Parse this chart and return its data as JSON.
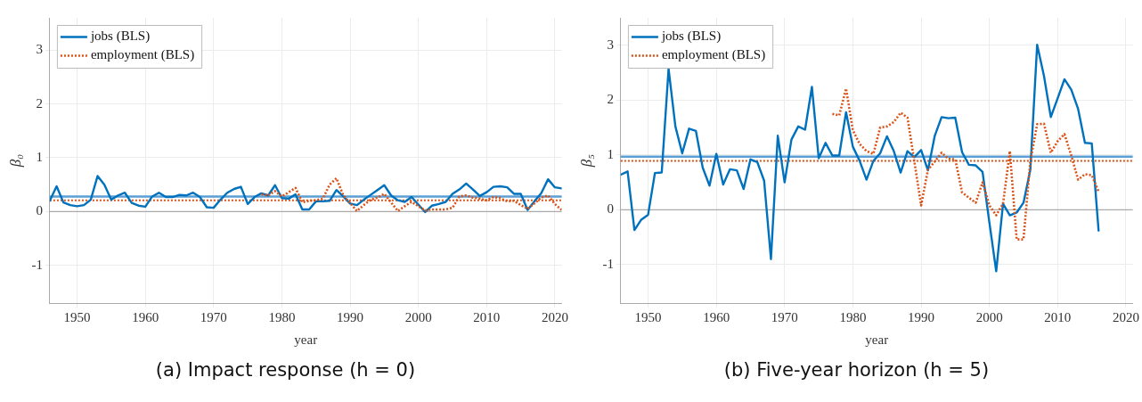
{
  "chart_data": [
    {
      "type": "line",
      "title": "(a) Impact response (h = 0)",
      "xlabel": "year",
      "ylabel": "β₀",
      "xlim": [
        1946,
        2021
      ],
      "xticks": [
        1950,
        1960,
        1970,
        1980,
        1990,
        2000,
        2010,
        2020
      ],
      "ylim": [
        -1.7,
        3.6
      ],
      "yticks": [
        -1,
        0,
        1,
        2,
        3
      ],
      "grid": true,
      "legend": "top left",
      "ref_lines": [
        {
          "axis": "y",
          "value": 0,
          "color": "#aaaaaa",
          "line_style": "solid"
        },
        {
          "axis": "y",
          "value": 0.28,
          "color": "#5b9fd6",
          "line_style": "solid"
        },
        {
          "axis": "y",
          "value": 0.21,
          "color": "#d95319",
          "line_style": "dotted"
        }
      ],
      "series": [
        {
          "name": "jobs (BLS)",
          "color": "#0072bd",
          "line_style": "solid",
          "x": [
            1946,
            1947,
            1948,
            1949,
            1950,
            1951,
            1952,
            1953,
            1954,
            1955,
            1956,
            1957,
            1958,
            1959,
            1960,
            1961,
            1962,
            1963,
            1964,
            1965,
            1966,
            1967,
            1968,
            1969,
            1970,
            1971,
            1972,
            1973,
            1974,
            1975,
            1976,
            1977,
            1978,
            1979,
            1980,
            1981,
            1982,
            1983,
            1984,
            1985,
            1986,
            1987,
            1988,
            1989,
            1990,
            1991,
            1992,
            1993,
            1994,
            1995,
            1996,
            1997,
            1998,
            1999,
            2000,
            2001,
            2002,
            2003,
            2004,
            2005,
            2006,
            2007,
            2008,
            2009,
            2010,
            2011,
            2012,
            2013,
            2014,
            2015,
            2016,
            2017,
            2018,
            2019,
            2020,
            2021
          ],
          "values": [
            0.2,
            0.47,
            0.17,
            0.12,
            0.1,
            0.12,
            0.22,
            0.66,
            0.5,
            0.22,
            0.3,
            0.35,
            0.16,
            0.11,
            0.09,
            0.28,
            0.35,
            0.27,
            0.27,
            0.31,
            0.3,
            0.35,
            0.27,
            0.08,
            0.07,
            0.22,
            0.35,
            0.42,
            0.46,
            0.14,
            0.27,
            0.34,
            0.3,
            0.49,
            0.25,
            0.24,
            0.32,
            0.04,
            0.04,
            0.19,
            0.19,
            0.2,
            0.4,
            0.28,
            0.15,
            0.12,
            0.22,
            0.31,
            0.4,
            0.49,
            0.3,
            0.21,
            0.18,
            0.27,
            0.13,
            -0.01,
            0.11,
            0.14,
            0.18,
            0.33,
            0.41,
            0.52,
            0.41,
            0.29,
            0.36,
            0.46,
            0.47,
            0.45,
            0.33,
            0.33,
            0.03,
            0.19,
            0.34,
            0.6,
            0.45,
            0.43
          ]
        },
        {
          "name": "employment (BLS)",
          "color": "#d95319",
          "line_style": "dotted",
          "x": [
            1977,
            1978,
            1979,
            1980,
            1981,
            1982,
            1983,
            1984,
            1985,
            1986,
            1987,
            1988,
            1989,
            1990,
            1991,
            1992,
            1993,
            1994,
            1995,
            1996,
            1997,
            1998,
            1999,
            2000,
            2001,
            2002,
            2003,
            2004,
            2005,
            2006,
            2007,
            2008,
            2009,
            2010,
            2011,
            2012,
            2013,
            2014,
            2015,
            2016,
            2017,
            2018,
            2019,
            2020,
            2021
          ],
          "values": [
            0.32,
            0.3,
            0.38,
            0.28,
            0.36,
            0.44,
            0.17,
            0.2,
            0.21,
            0.24,
            0.5,
            0.62,
            0.3,
            0.16,
            0.01,
            0.12,
            0.22,
            0.26,
            0.33,
            0.17,
            0.01,
            0.1,
            0.18,
            0.1,
            0.02,
            0.04,
            0.04,
            0.04,
            0.07,
            0.28,
            0.3,
            0.26,
            0.24,
            0.21,
            0.27,
            0.25,
            0.19,
            0.2,
            0.12,
            0.05,
            0.15,
            0.26,
            0.3,
            0.14,
            0.03
          ]
        }
      ]
    },
    {
      "type": "line",
      "title": "(b) Five-year horizon (h = 5)",
      "xlabel": "year",
      "ylabel": "β₅",
      "xlim": [
        1946,
        2021
      ],
      "xticks": [
        1950,
        1960,
        1970,
        1980,
        1990,
        2000,
        2010,
        2020
      ],
      "ylim": [
        -1.7,
        3.5
      ],
      "yticks": [
        -1,
        0,
        1,
        2,
        3
      ],
      "grid": true,
      "legend": "top left",
      "ref_lines": [
        {
          "axis": "y",
          "value": 0,
          "color": "#aaaaaa",
          "line_style": "solid"
        },
        {
          "axis": "y",
          "value": 0.97,
          "color": "#5b9fd6",
          "line_style": "solid"
        },
        {
          "axis": "y",
          "value": 0.89,
          "color": "#d95319",
          "line_style": "dotted"
        }
      ],
      "series": [
        {
          "name": "jobs (BLS)",
          "color": "#0072bd",
          "line_style": "solid",
          "x": [
            1946,
            1947,
            1948,
            1949,
            1950,
            1951,
            1952,
            1953,
            1954,
            1955,
            1956,
            1957,
            1958,
            1959,
            1960,
            1961,
            1962,
            1963,
            1964,
            1965,
            1966,
            1967,
            1968,
            1969,
            1970,
            1971,
            1972,
            1973,
            1974,
            1975,
            1976,
            1977,
            1978,
            1979,
            1980,
            1981,
            1982,
            1983,
            1984,
            1985,
            1986,
            1987,
            1988,
            1989,
            1990,
            1991,
            1992,
            1993,
            1994,
            1995,
            1996,
            1997,
            1998,
            1999,
            2000,
            2001,
            2002,
            2003,
            2004,
            2005,
            2006,
            2007,
            2008,
            2009,
            2010,
            2011,
            2012,
            2013,
            2014,
            2015,
            2016
          ],
          "values": [
            0.64,
            0.7,
            -0.37,
            -0.18,
            -0.09,
            0.67,
            0.68,
            2.57,
            1.52,
            1.03,
            1.48,
            1.44,
            0.77,
            0.44,
            1.02,
            0.46,
            0.74,
            0.72,
            0.38,
            0.92,
            0.87,
            0.53,
            -0.9,
            1.35,
            0.5,
            1.28,
            1.52,
            1.46,
            2.24,
            0.94,
            1.22,
            0.99,
            0.99,
            1.78,
            1.15,
            0.89,
            0.55,
            0.89,
            1.03,
            1.34,
            1.07,
            0.68,
            1.07,
            0.96,
            1.09,
            0.72,
            1.35,
            1.69,
            1.67,
            1.68,
            1.05,
            0.82,
            0.81,
            0.69,
            -0.23,
            -1.12,
            0.11,
            -0.1,
            -0.05,
            0.13,
            0.73,
            3.01,
            2.44,
            1.69,
            2.03,
            2.38,
            2.19,
            1.84,
            1.22,
            1.21,
            -0.38
          ]
        },
        {
          "name": "employment (BLS)",
          "color": "#d95319",
          "line_style": "dotted",
          "x": [
            1977,
            1978,
            1979,
            1980,
            1981,
            1982,
            1983,
            1984,
            1985,
            1986,
            1987,
            1988,
            1989,
            1990,
            1991,
            1992,
            1993,
            1994,
            1995,
            1996,
            1997,
            1998,
            1999,
            2000,
            2001,
            2002,
            2003,
            2004,
            2005,
            2006,
            2007,
            2008,
            2009,
            2010,
            2011,
            2012,
            2013,
            2014,
            2015,
            2016
          ],
          "values": [
            1.75,
            1.72,
            2.21,
            1.45,
            1.2,
            1.07,
            1.02,
            1.5,
            1.52,
            1.6,
            1.77,
            1.68,
            0.89,
            0.08,
            0.73,
            0.88,
            1.04,
            0.93,
            0.92,
            0.32,
            0.22,
            0.13,
            0.5,
            0.08,
            -0.1,
            0.11,
            1.07,
            -0.54,
            -0.54,
            0.89,
            1.56,
            1.57,
            1.04,
            1.25,
            1.38,
            0.99,
            0.55,
            0.65,
            0.63,
            0.33
          ]
        }
      ]
    }
  ]
}
